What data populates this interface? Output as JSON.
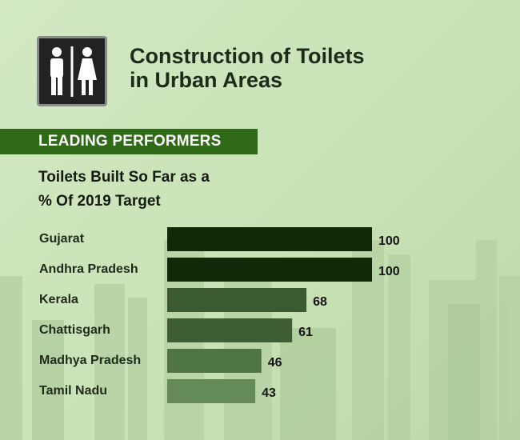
{
  "header": {
    "title_line1": "Construction of Toilets",
    "title_line2": "in Urban Areas",
    "icon": "restroom-icon"
  },
  "banner": {
    "label": "LEADING PERFORMERS"
  },
  "subtitle": {
    "line1": "Toilets Built So Far as a",
    "line2": "% Of 2019 Target"
  },
  "colors": {
    "banner": "#2f6a16",
    "bars": [
      "#122806",
      "#122806",
      "#3a5a32",
      "#3d5e35",
      "#4f7445",
      "#648a58"
    ]
  },
  "chart_data": {
    "type": "bar",
    "orientation": "horizontal",
    "title": "Toilets Built So Far as a % Of 2019 Target",
    "categories": [
      "Gujarat",
      "Andhra Pradesh",
      "Kerala",
      "Chattisgarh",
      "Madhya Pradesh",
      "Tamil Nadu"
    ],
    "values": [
      100,
      100,
      68,
      61,
      46,
      43
    ],
    "xlim": [
      0,
      100
    ],
    "xlabel": "",
    "ylabel": "",
    "grid": false
  }
}
